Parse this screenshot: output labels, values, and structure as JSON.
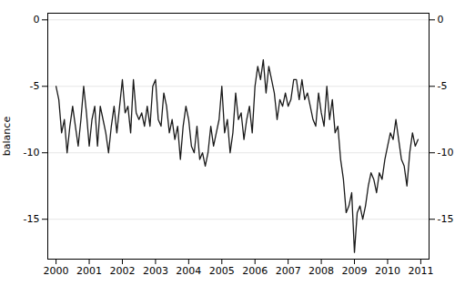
{
  "chart_data": {
    "type": "line",
    "ylabel": "balance",
    "color": "#1a1a1a",
    "xlim": [
      1999.75,
      2011.25
    ],
    "xticks": [
      2000,
      2001,
      2002,
      2003,
      2004,
      2005,
      2006,
      2007,
      2008,
      2009,
      2010,
      2011
    ],
    "ylim": [
      -18.0,
      0.5
    ],
    "yticks": [
      0,
      -5,
      -10,
      -15
    ],
    "grid": true,
    "x": [
      2000.0,
      2000.083,
      2000.167,
      2000.25,
      2000.333,
      2000.417,
      2000.5,
      2000.583,
      2000.667,
      2000.75,
      2000.833,
      2000.917,
      2001.0,
      2001.083,
      2001.167,
      2001.25,
      2001.333,
      2001.417,
      2001.5,
      2001.583,
      2001.667,
      2001.75,
      2001.833,
      2001.917,
      2002.0,
      2002.083,
      2002.167,
      2002.25,
      2002.333,
      2002.417,
      2002.5,
      2002.583,
      2002.667,
      2002.75,
      2002.833,
      2002.917,
      2003.0,
      2003.083,
      2003.167,
      2003.25,
      2003.333,
      2003.417,
      2003.5,
      2003.583,
      2003.667,
      2003.75,
      2003.833,
      2003.917,
      2004.0,
      2004.083,
      2004.167,
      2004.25,
      2004.333,
      2004.417,
      2004.5,
      2004.583,
      2004.667,
      2004.75,
      2004.833,
      2004.917,
      2005.0,
      2005.083,
      2005.167,
      2005.25,
      2005.333,
      2005.417,
      2005.5,
      2005.583,
      2005.667,
      2005.75,
      2005.833,
      2005.917,
      2006.0,
      2006.083,
      2006.167,
      2006.25,
      2006.333,
      2006.417,
      2006.5,
      2006.583,
      2006.667,
      2006.75,
      2006.833,
      2006.917,
      2007.0,
      2007.083,
      2007.167,
      2007.25,
      2007.333,
      2007.417,
      2007.5,
      2007.583,
      2007.667,
      2007.75,
      2007.833,
      2007.917,
      2008.0,
      2008.083,
      2008.167,
      2008.25,
      2008.333,
      2008.417,
      2008.5,
      2008.583,
      2008.667,
      2008.75,
      2008.833,
      2008.917,
      2009.0,
      2009.083,
      2009.167,
      2009.25,
      2009.333,
      2009.417,
      2009.5,
      2009.583,
      2009.667,
      2009.75,
      2009.833,
      2009.917,
      2010.0,
      2010.083,
      2010.167,
      2010.25,
      2010.333,
      2010.417,
      2010.5,
      2010.583,
      2010.667,
      2010.75,
      2010.833,
      2010.917
    ],
    "values": [
      -5.0,
      -6.0,
      -8.5,
      -7.5,
      -10.0,
      -8.0,
      -6.5,
      -8.0,
      -9.5,
      -7.5,
      -5.0,
      -7.0,
      -9.5,
      -7.5,
      -6.5,
      -9.5,
      -6.5,
      -7.5,
      -8.5,
      -10.0,
      -8.0,
      -6.5,
      -8.5,
      -6.5,
      -4.5,
      -7.0,
      -6.5,
      -8.5,
      -4.5,
      -7.0,
      -7.5,
      -7.0,
      -8.0,
      -6.5,
      -8.0,
      -5.0,
      -4.5,
      -7.5,
      -8.0,
      -5.5,
      -6.5,
      -8.5,
      -7.5,
      -9.0,
      -8.0,
      -10.5,
      -8.0,
      -6.5,
      -7.5,
      -9.5,
      -10.0,
      -8.0,
      -10.5,
      -10.0,
      -11.0,
      -10.0,
      -8.0,
      -9.5,
      -8.5,
      -7.5,
      -5.0,
      -8.5,
      -7.5,
      -10.0,
      -8.5,
      -5.5,
      -7.5,
      -7.0,
      -9.0,
      -7.5,
      -6.5,
      -8.5,
      -5.0,
      -3.5,
      -4.5,
      -3.0,
      -5.5,
      -3.5,
      -4.5,
      -5.5,
      -7.5,
      -6.0,
      -6.5,
      -5.5,
      -6.5,
      -6.0,
      -4.5,
      -4.5,
      -6.0,
      -4.5,
      -6.0,
      -5.5,
      -6.5,
      -7.5,
      -8.0,
      -5.5,
      -7.0,
      -8.0,
      -5.0,
      -7.5,
      -6.0,
      -8.5,
      -8.0,
      -10.5,
      -12.0,
      -14.5,
      -14.0,
      -13.0,
      -17.5,
      -14.5,
      -14.0,
      -15.0,
      -14.0,
      -12.5,
      -11.5,
      -12.0,
      -13.0,
      -11.5,
      -12.0,
      -10.5,
      -9.5,
      -8.5,
      -9.0,
      -7.5,
      -9.0,
      -10.5,
      -11.0,
      -12.5,
      -10.0,
      -8.5,
      -9.5,
      -9.0
    ]
  }
}
